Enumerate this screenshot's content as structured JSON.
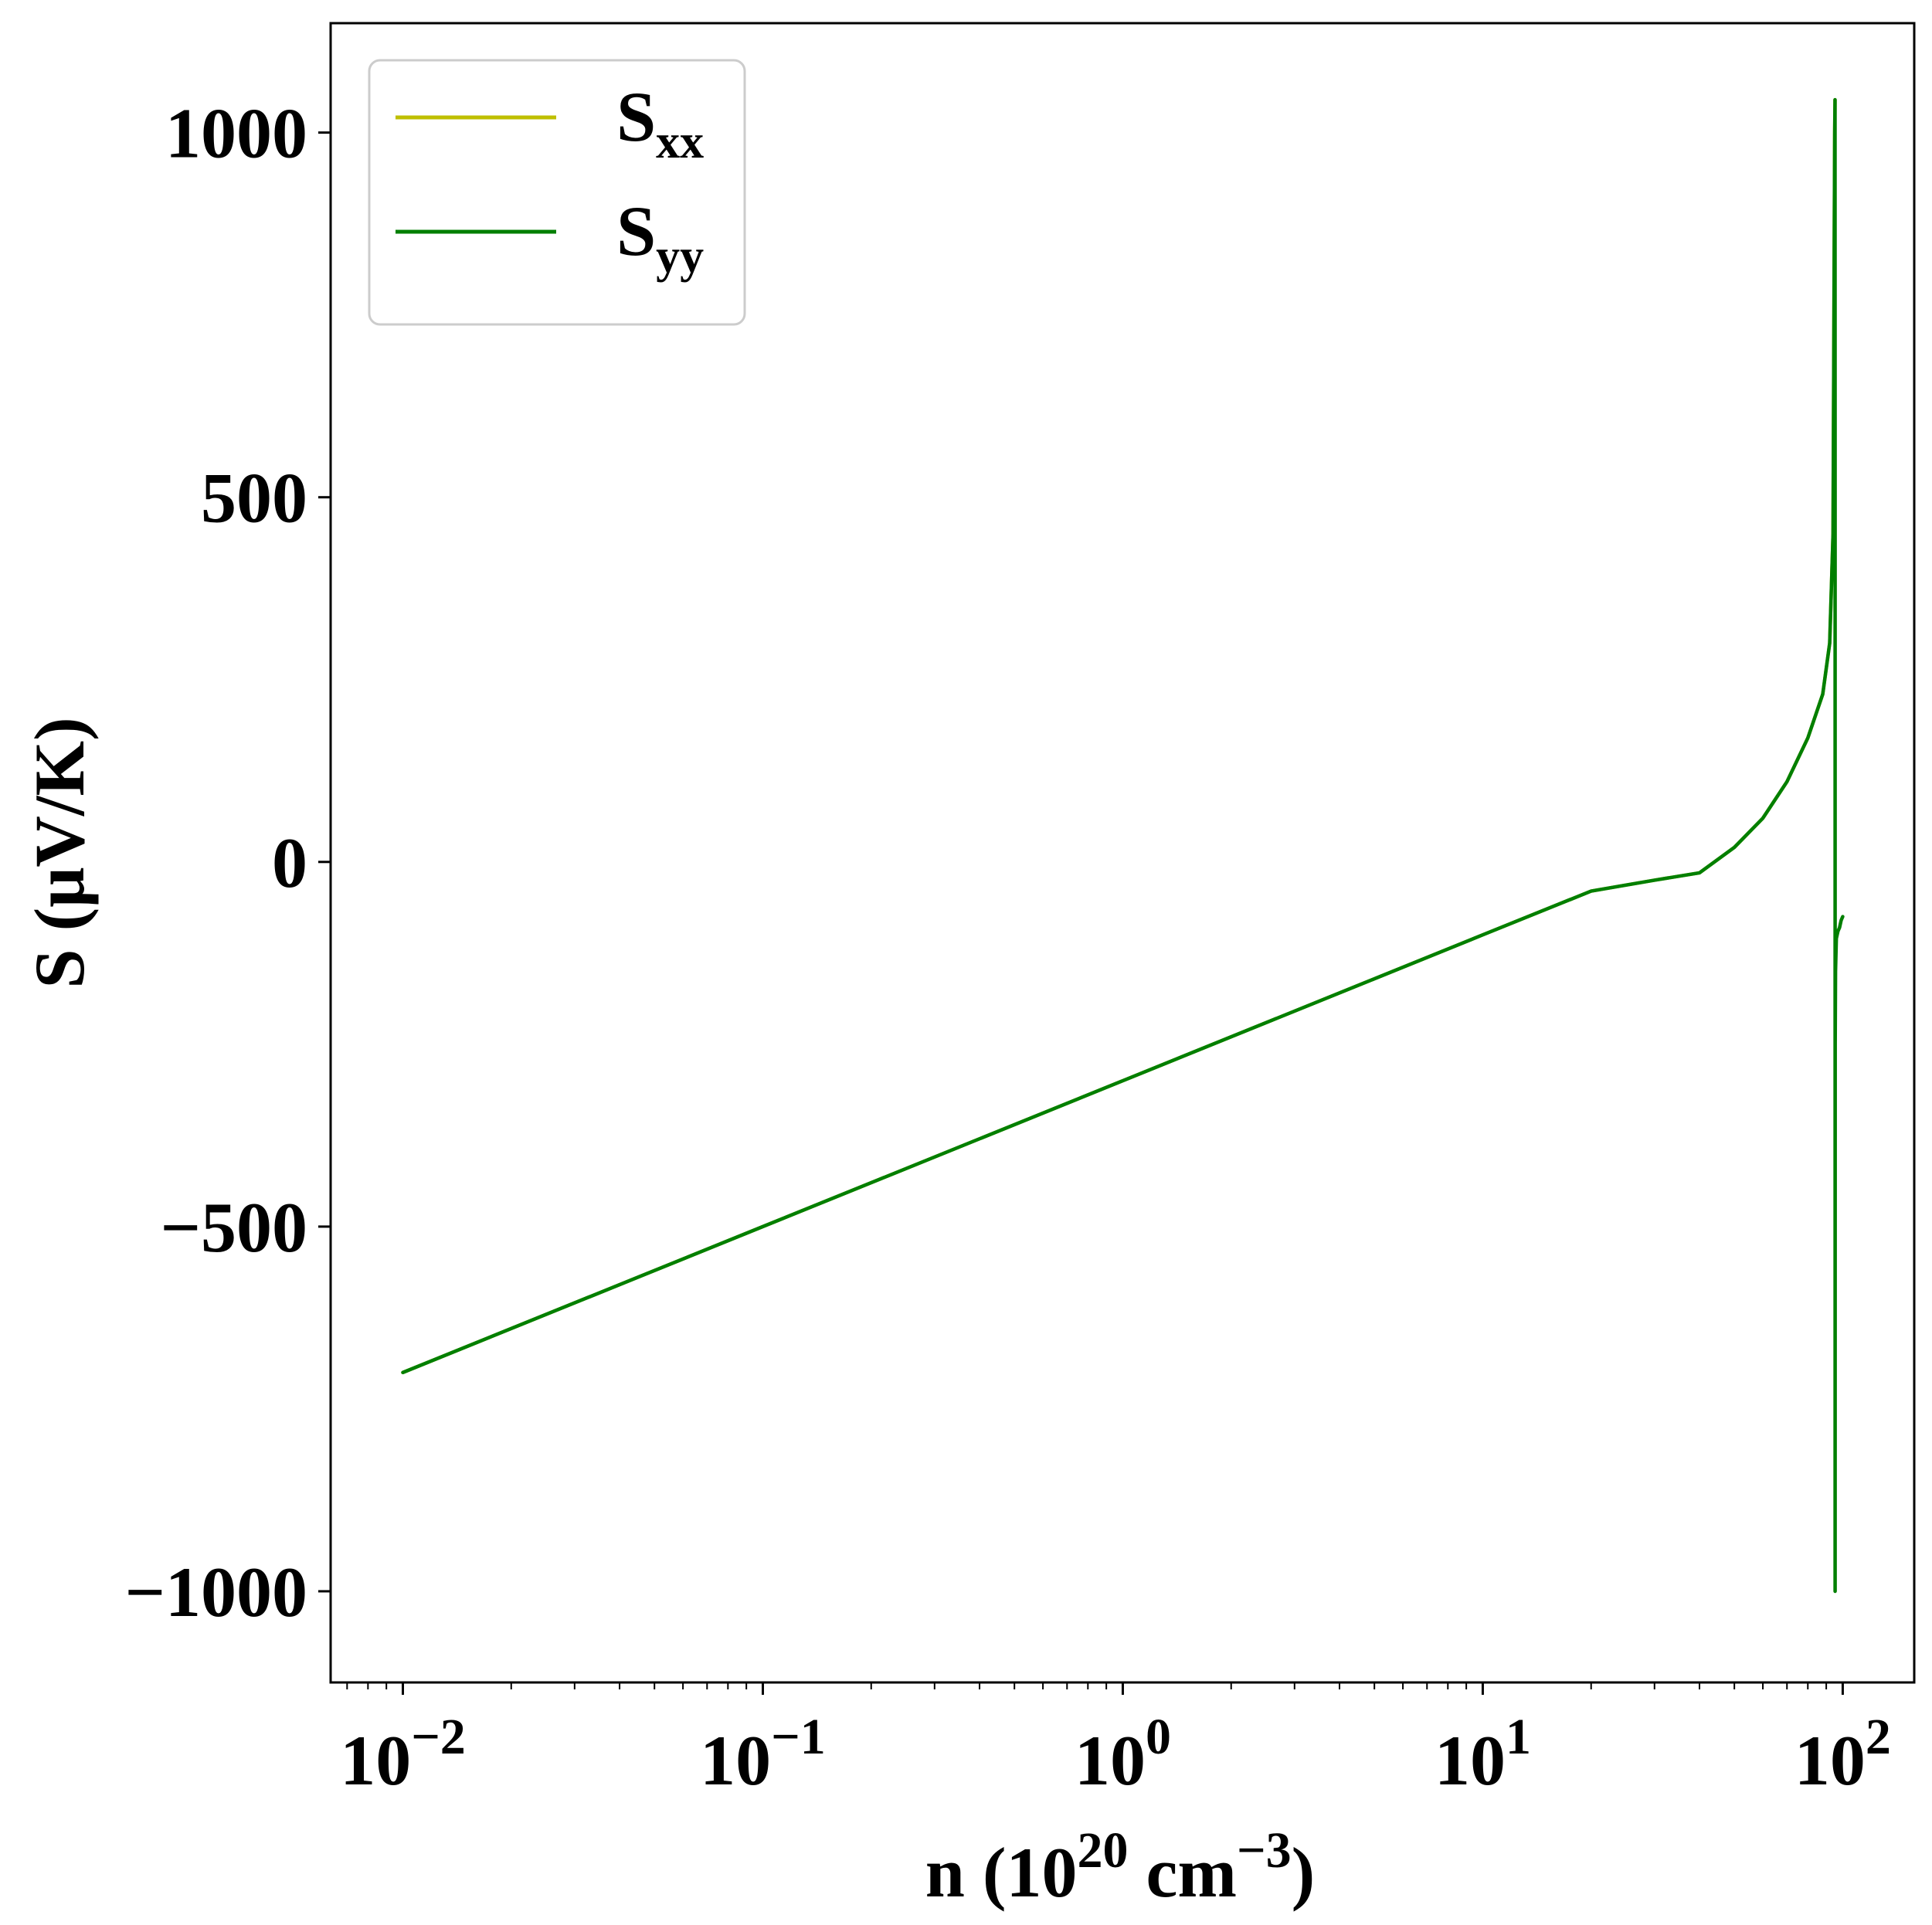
{
  "chart_data": {
    "type": "line",
    "title": "",
    "xlabel": {
      "prefix": "n (10",
      "sup1": "20",
      "middle": " cm",
      "sup2": "−3",
      "suffix": ")"
    },
    "ylabel": "S (μV/K)",
    "xscale": "log",
    "xlim": [
      0.0063,
      158
    ],
    "ylim": [
      -1125,
      1150
    ],
    "xticks": [
      {
        "value": 0.01,
        "base": "10",
        "exp": "−2"
      },
      {
        "value": 0.1,
        "base": "10",
        "exp": "−1"
      },
      {
        "value": 1,
        "base": "10",
        "exp": "0"
      },
      {
        "value": 10,
        "base": "10",
        "exp": "1"
      },
      {
        "value": 100,
        "base": "10",
        "exp": "2"
      }
    ],
    "yticks": [
      {
        "value": 1000,
        "label": "1000"
      },
      {
        "value": 500,
        "label": "500"
      },
      {
        "value": 0,
        "label": "0"
      },
      {
        "value": -500,
        "label": "−500"
      },
      {
        "value": -1000,
        "label": "−1000"
      }
    ],
    "grid": false,
    "legend_position": "top-left",
    "series": [
      {
        "name": {
          "base": "S",
          "sub": "xx"
        },
        "color": "#bfbf00",
        "x": [
          0.01,
          0.1,
          1,
          10,
          20,
          30,
          40,
          50,
          60,
          70,
          80,
          88,
          92,
          94,
          95,
          95.2
        ],
        "y": [
          -700,
          -500,
          -300,
          -100,
          -40,
          -25,
          -15,
          20,
          60,
          110,
          170,
          230,
          300,
          450,
          1000,
          1045
        ]
      },
      {
        "name": {
          "base": "S",
          "sub": "yy"
        },
        "color": "#007f00",
        "x": [
          0.01,
          0.1,
          1,
          10,
          20,
          30,
          40,
          50,
          60,
          70,
          80,
          88,
          92,
          94,
          95,
          95.2,
          95.25,
          95.25,
          95.3,
          95.5,
          96,
          97,
          98,
          99,
          100
        ],
        "y": [
          -700,
          -500,
          -300,
          -100,
          -40,
          -25,
          -15,
          20,
          60,
          110,
          170,
          230,
          300,
          450,
          1000,
          1045,
          500,
          -1000,
          -250,
          -150,
          -105,
          -95,
          -90,
          -80,
          -75
        ]
      }
    ]
  }
}
